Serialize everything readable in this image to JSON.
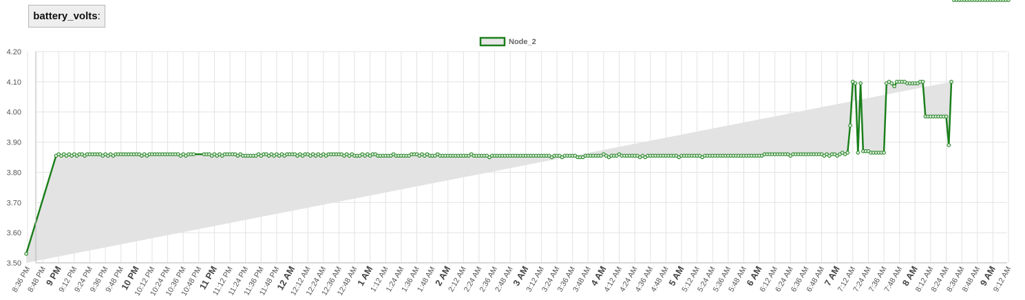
{
  "header": {
    "metric_name": "battery_volts",
    "suffix": ":"
  },
  "colors": {
    "series_line": "#1a7f1a",
    "series_fill": "#e3e3e3",
    "grid": "#e2e2e2",
    "axis": "#b5b5b5"
  },
  "chart_data": {
    "type": "area",
    "ylim": [
      3.5,
      4.2
    ],
    "yticks": [
      "4.20",
      "4.10",
      "4.00",
      "3.90",
      "3.80",
      "3.70",
      "3.60",
      "3.50"
    ],
    "ytick_values": [
      4.2,
      4.1,
      4.0,
      3.9,
      3.8,
      3.7,
      3.6,
      3.5
    ],
    "xlim_minutes": [
      -2,
      2531
    ],
    "xticks": [
      {
        "label": "8:36 PM",
        "m": 0,
        "major": false
      },
      {
        "label": "8:48 PM",
        "m": 12,
        "major": false
      },
      {
        "label": "9 PM",
        "m": 24,
        "major": true
      },
      {
        "label": "9:12 PM",
        "m": 36,
        "major": false
      },
      {
        "label": "9:24 PM",
        "m": 48,
        "major": false
      },
      {
        "label": "9:36 PM",
        "m": 60,
        "major": false
      },
      {
        "label": "9:48 PM",
        "m": 72,
        "major": false
      },
      {
        "label": "10 PM",
        "m": 84,
        "major": true
      },
      {
        "label": "10:12 PM",
        "m": 96,
        "major": false
      },
      {
        "label": "10:24 PM",
        "m": 108,
        "major": false
      },
      {
        "label": "10:36 PM",
        "m": 120,
        "major": false
      },
      {
        "label": "10:48 PM",
        "m": 132,
        "major": false
      },
      {
        "label": "11 PM",
        "m": 144,
        "major": true
      },
      {
        "label": "11:12 PM",
        "m": 156,
        "major": false
      },
      {
        "label": "11:24 PM",
        "m": 168,
        "major": false
      },
      {
        "label": "11:36 PM",
        "m": 180,
        "major": false
      },
      {
        "label": "11:48 PM",
        "m": 192,
        "major": false
      },
      {
        "label": "12 AM",
        "m": 204,
        "major": true
      },
      {
        "label": "12:12 AM",
        "m": 216,
        "major": false
      },
      {
        "label": "12:24 AM",
        "m": 228,
        "major": false
      },
      {
        "label": "12:36 AM",
        "m": 240,
        "major": false
      },
      {
        "label": "12:48 AM",
        "m": 252,
        "major": false
      },
      {
        "label": "1 AM",
        "m": 264,
        "major": true
      },
      {
        "label": "1:12 AM",
        "m": 276,
        "major": false
      },
      {
        "label": "1:24 AM",
        "m": 288,
        "major": false
      },
      {
        "label": "1:36 AM",
        "m": 300,
        "major": false
      },
      {
        "label": "1:48 AM",
        "m": 312,
        "major": false
      },
      {
        "label": "2 AM",
        "m": 324,
        "major": true
      },
      {
        "label": "2:12 AM",
        "m": 336,
        "major": false
      },
      {
        "label": "2:24 AM",
        "m": 348,
        "major": false
      },
      {
        "label": "2:36 AM",
        "m": 360,
        "major": false
      },
      {
        "label": "2:48 AM",
        "m": 372,
        "major": false
      },
      {
        "label": "3 AM",
        "m": 384,
        "major": true
      },
      {
        "label": "3:12 AM",
        "m": 396,
        "major": false
      },
      {
        "label": "3:24 AM",
        "m": 408,
        "major": false
      },
      {
        "label": "3:36 AM",
        "m": 420,
        "major": false
      },
      {
        "label": "3:48 AM",
        "m": 432,
        "major": false
      },
      {
        "label": "4 AM",
        "m": 444,
        "major": true
      },
      {
        "label": "4:12 AM",
        "m": 456,
        "major": false
      },
      {
        "label": "4:24 AM",
        "m": 468,
        "major": false
      },
      {
        "label": "4:36 AM",
        "m": 480,
        "major": false
      },
      {
        "label": "4:48 AM",
        "m": 492,
        "major": false
      },
      {
        "label": "5 AM",
        "m": 504,
        "major": true
      },
      {
        "label": "5:12 AM",
        "m": 516,
        "major": false
      },
      {
        "label": "5:24 AM",
        "m": 528,
        "major": false
      },
      {
        "label": "5:36 AM",
        "m": 540,
        "major": false
      },
      {
        "label": "5:48 AM",
        "m": 552,
        "major": false
      },
      {
        "label": "6 AM",
        "m": 564,
        "major": true
      },
      {
        "label": "6:12 AM",
        "m": 576,
        "major": false
      },
      {
        "label": "6:24 AM",
        "m": 588,
        "major": false
      },
      {
        "label": "6:36 AM",
        "m": 600,
        "major": false
      },
      {
        "label": "6:48 AM",
        "m": 612,
        "major": false
      },
      {
        "label": "7 AM",
        "m": 624,
        "major": true
      },
      {
        "label": "7:12 AM",
        "m": 636,
        "major": false
      },
      {
        "label": "7:24 AM",
        "m": 648,
        "major": false
      },
      {
        "label": "7:36 AM",
        "m": 660,
        "major": false
      },
      {
        "label": "7:48 AM",
        "m": 672,
        "major": false
      },
      {
        "label": "8 AM",
        "m": 684,
        "major": true
      },
      {
        "label": "8:12 AM",
        "m": 696,
        "major": false
      },
      {
        "label": "8:24 AM",
        "m": 708,
        "major": false
      },
      {
        "label": "8:36 AM",
        "m": 720,
        "major": false
      },
      {
        "label": "8:48 AM",
        "m": 732,
        "major": false
      },
      {
        "label": "9 AM",
        "m": 744,
        "major": true
      },
      {
        "label": "9:12 AM",
        "m": 756,
        "major": false
      }
    ],
    "legend": {
      "placement": "top-center",
      "entries": [
        "Node_2"
      ]
    },
    "grid": true,
    "series": [
      {
        "name": "Node_2",
        "x_minutes_after_836pm": [
          -1,
          22,
          24,
          26,
          28,
          30,
          32,
          34,
          36,
          38,
          40,
          42,
          44,
          46,
          48,
          50,
          52,
          54,
          56,
          58,
          60,
          62,
          64,
          66,
          68,
          70,
          72,
          74,
          76,
          78,
          80,
          82,
          84,
          86,
          88,
          90,
          92,
          94,
          96,
          98,
          100,
          102,
          104,
          106,
          108,
          110,
          112,
          114,
          116,
          118,
          120,
          122,
          124,
          126,
          128,
          136,
          138,
          140,
          142,
          144,
          146,
          148,
          150,
          152,
          154,
          156,
          158,
          160,
          162,
          164,
          166,
          168,
          170,
          172,
          174,
          176,
          178,
          180,
          182,
          184,
          186,
          188,
          190,
          192,
          194,
          196,
          198,
          200,
          202,
          204,
          206,
          208,
          210,
          212,
          214,
          216,
          218,
          220,
          222,
          224,
          226,
          228,
          230,
          232,
          234,
          236,
          238,
          240,
          242,
          244,
          246,
          248,
          250,
          252,
          254,
          256,
          258,
          260,
          262,
          264,
          266,
          268,
          270,
          272,
          274,
          276,
          278,
          280,
          282,
          284,
          286,
          288,
          290,
          292,
          294,
          296,
          298,
          300,
          302,
          304,
          306,
          308,
          310,
          312,
          314,
          316,
          318,
          320,
          322,
          324,
          326,
          328,
          330,
          332,
          334,
          336,
          338,
          340,
          342,
          344,
          346,
          348,
          350,
          352,
          354,
          356,
          358,
          360,
          362,
          364,
          366,
          368,
          370,
          372,
          374,
          376,
          378,
          380,
          382,
          384,
          386,
          388,
          390,
          392,
          394,
          396,
          398,
          400,
          402,
          404,
          406,
          408,
          410,
          412,
          414,
          416,
          418,
          420,
          422,
          424,
          426,
          428,
          430,
          432,
          434,
          436,
          438,
          440,
          442,
          444,
          446,
          448,
          450,
          452,
          454,
          456,
          458,
          460,
          462,
          464,
          466,
          468,
          470,
          472,
          474,
          476,
          478,
          480,
          482,
          484,
          486,
          488,
          490,
          492,
          494,
          496,
          498,
          500,
          502,
          504,
          506,
          508,
          510,
          512,
          514,
          516,
          518,
          520,
          522,
          524,
          526,
          528,
          530,
          532,
          534,
          536,
          538,
          540,
          542,
          544,
          546,
          548,
          550,
          552,
          554,
          556,
          558,
          560,
          562,
          564,
          566,
          568,
          570,
          572,
          574,
          576,
          578,
          580,
          582,
          584,
          586,
          588,
          590,
          592,
          594,
          596,
          598,
          600,
          602,
          604,
          606,
          608,
          610,
          612,
          614,
          616,
          618,
          620,
          622,
          624,
          626,
          628,
          630,
          632,
          634,
          636,
          638,
          640,
          642,
          644,
          646,
          648,
          650,
          652,
          654,
          656,
          658,
          660,
          662,
          664,
          666,
          668,
          670,
          672,
          674,
          676,
          678,
          680,
          682,
          684,
          686,
          688,
          690,
          692,
          694,
          696,
          698,
          700,
          702,
          704,
          706,
          708,
          710,
          712,
          714,
          716,
          718,
          720,
          722,
          724,
          726,
          728,
          730,
          732,
          734,
          736,
          738,
          740,
          742,
          744,
          746,
          748,
          750,
          752,
          754,
          756
        ],
        "values": [
          3.53,
          3.855,
          3.86,
          3.855,
          3.86,
          3.855,
          3.86,
          3.855,
          3.86,
          3.855,
          3.86,
          3.86,
          3.855,
          3.86,
          3.86,
          3.86,
          3.86,
          3.86,
          3.86,
          3.855,
          3.86,
          3.855,
          3.86,
          3.855,
          3.86,
          3.86,
          3.86,
          3.86,
          3.86,
          3.86,
          3.86,
          3.86,
          3.86,
          3.86,
          3.855,
          3.86,
          3.855,
          3.86,
          3.86,
          3.86,
          3.86,
          3.86,
          3.86,
          3.86,
          3.86,
          3.86,
          3.86,
          3.86,
          3.86,
          3.855,
          3.86,
          3.855,
          3.86,
          3.86,
          3.86,
          3.86,
          3.86,
          3.86,
          3.855,
          3.86,
          3.855,
          3.86,
          3.855,
          3.86,
          3.86,
          3.86,
          3.86,
          3.86,
          3.855,
          3.86,
          3.855,
          3.855,
          3.855,
          3.855,
          3.855,
          3.855,
          3.86,
          3.855,
          3.86,
          3.86,
          3.855,
          3.86,
          3.855,
          3.86,
          3.855,
          3.86,
          3.855,
          3.86,
          3.86,
          3.86,
          3.86,
          3.855,
          3.86,
          3.855,
          3.86,
          3.86,
          3.855,
          3.86,
          3.855,
          3.86,
          3.855,
          3.86,
          3.855,
          3.86,
          3.86,
          3.86,
          3.86,
          3.86,
          3.86,
          3.855,
          3.86,
          3.855,
          3.86,
          3.855,
          3.855,
          3.855,
          3.86,
          3.855,
          3.86,
          3.855,
          3.86,
          3.86,
          3.855,
          3.855,
          3.855,
          3.855,
          3.855,
          3.855,
          3.86,
          3.855,
          3.855,
          3.855,
          3.855,
          3.855,
          3.855,
          3.86,
          3.86,
          3.86,
          3.855,
          3.86,
          3.855,
          3.86,
          3.855,
          3.855,
          3.855,
          3.86,
          3.855,
          3.855,
          3.855,
          3.855,
          3.855,
          3.855,
          3.855,
          3.855,
          3.855,
          3.855,
          3.855,
          3.855,
          3.86,
          3.855,
          3.855,
          3.855,
          3.855,
          3.855,
          3.855,
          3.85,
          3.855,
          3.855,
          3.855,
          3.855,
          3.855,
          3.855,
          3.855,
          3.855,
          3.855,
          3.855,
          3.855,
          3.855,
          3.855,
          3.855,
          3.855,
          3.855,
          3.855,
          3.855,
          3.855,
          3.855,
          3.855,
          3.855,
          3.855,
          3.85,
          3.855,
          3.855,
          3.855,
          3.85,
          3.855,
          3.855,
          3.855,
          3.855,
          3.855,
          3.85,
          3.85,
          3.85,
          3.855,
          3.855,
          3.855,
          3.855,
          3.855,
          3.855,
          3.855,
          3.86,
          3.855,
          3.85,
          3.855,
          3.855,
          3.855,
          3.86,
          3.855,
          3.855,
          3.855,
          3.855,
          3.855,
          3.855,
          3.855,
          3.85,
          3.855,
          3.85,
          3.855,
          3.855,
          3.855,
          3.855,
          3.855,
          3.855,
          3.855,
          3.855,
          3.855,
          3.855,
          3.855,
          3.855,
          3.85,
          3.855,
          3.855,
          3.855,
          3.855,
          3.855,
          3.855,
          3.855,
          3.855,
          3.85,
          3.855,
          3.855,
          3.855,
          3.855,
          3.855,
          3.855,
          3.855,
          3.855,
          3.855,
          3.855,
          3.855,
          3.855,
          3.855,
          3.855,
          3.855,
          3.855,
          3.855,
          3.855,
          3.855,
          3.855,
          3.855,
          3.855,
          3.855,
          3.86,
          3.86,
          3.86,
          3.86,
          3.86,
          3.86,
          3.86,
          3.86,
          3.86,
          3.86,
          3.855,
          3.86,
          3.86,
          3.86,
          3.86,
          3.86,
          3.86,
          3.86,
          3.86,
          3.86,
          3.86,
          3.86,
          3.86,
          3.855,
          3.86,
          3.855,
          3.86,
          3.86,
          3.855,
          3.86,
          3.865,
          3.86,
          3.865,
          3.955,
          4.1,
          4.095,
          3.865,
          4.095,
          3.87,
          3.87,
          3.87,
          3.865,
          3.865,
          3.865,
          3.865,
          3.865,
          3.865,
          4.095,
          4.1,
          4.095,
          4.085,
          4.1,
          4.1,
          4.1,
          4.1,
          4.095,
          4.095,
          4.095,
          4.095,
          4.095,
          4.1,
          4.1,
          3.985,
          3.985,
          3.985,
          3.985,
          3.985,
          3.985,
          3.985,
          3.985,
          3.985,
          3.89,
          4.1
        ]
      }
    ]
  }
}
